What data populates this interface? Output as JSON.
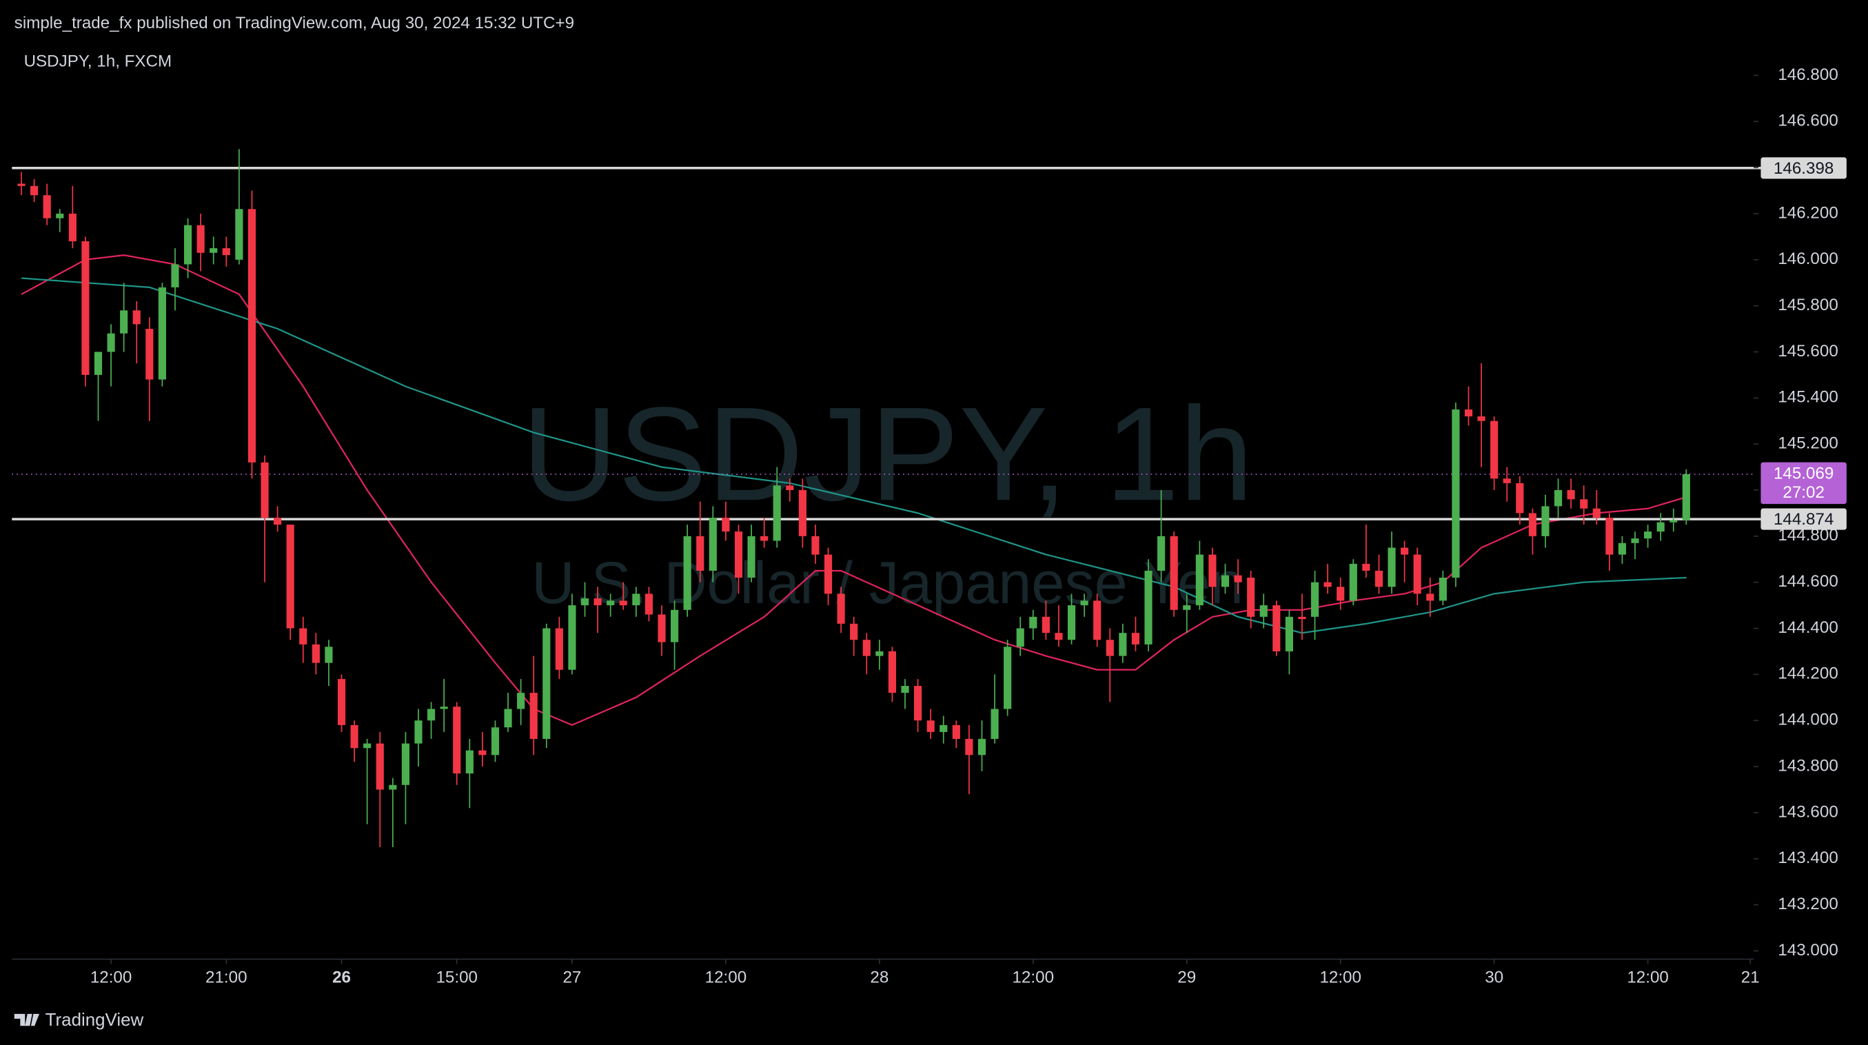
{
  "chart_data": {
    "type": "candlestick",
    "header": "simple_trade_fx published on TradingView.com, Aug 30, 2024 15:32 UTC+9",
    "title": "USDJPY, 1h, FXCM",
    "watermark": [
      "USDJPY, 1h",
      "U.S. Dollar / Japanese Yen"
    ],
    "footer": "TradingView",
    "up_color": "#4caf50",
    "down_color": "#f23645",
    "open": [
      146.33,
      146.32,
      146.28,
      146.18,
      146.2,
      146.08,
      145.5,
      145.6,
      145.68,
      145.78,
      145.7,
      145.48,
      145.88,
      145.98,
      146.15,
      146.03,
      146.05,
      146.0,
      146.22,
      145.12,
      144.88,
      144.85,
      144.4,
      144.33,
      144.25,
      144.18,
      143.98,
      143.88,
      143.9,
      143.7,
      143.72,
      143.9,
      144.0,
      144.05,
      144.06,
      143.77,
      143.87,
      143.85,
      143.97,
      144.05,
      144.12,
      143.92,
      144.4,
      144.22,
      144.5,
      144.53,
      144.5,
      144.52,
      144.5,
      144.55,
      144.46,
      144.34,
      144.48,
      144.8,
      144.65,
      144.88,
      144.82,
      144.62,
      144.8,
      144.78,
      145.02,
      145.0,
      144.8,
      144.72,
      144.55,
      144.42,
      144.35,
      144.28,
      144.3,
      144.12,
      144.15,
      144.0,
      143.95,
      143.98,
      143.92,
      143.85,
      143.92,
      144.05,
      144.32,
      144.4,
      144.45,
      144.38,
      144.35,
      144.5,
      144.52,
      144.35,
      144.28,
      144.38,
      144.33,
      144.65,
      144.8,
      144.48,
      144.5,
      144.72,
      144.58,
      144.63,
      144.62,
      144.45,
      144.5,
      144.3,
      144.45,
      144.45,
      144.6,
      144.58,
      144.52,
      144.68,
      144.65,
      144.58,
      144.75,
      144.72,
      144.55,
      144.52,
      144.62,
      145.35,
      145.32,
      145.3,
      145.05,
      145.03,
      144.9,
      144.8,
      144.93,
      145.0,
      144.96,
      144.92,
      144.88,
      144.72,
      144.77,
      144.79,
      144.82,
      144.86,
      144.87
    ],
    "high": [
      146.38,
      146.35,
      146.33,
      146.22,
      146.32,
      146.1,
      145.6,
      145.72,
      145.9,
      145.82,
      145.75,
      145.9,
      146.05,
      146.18,
      146.2,
      146.1,
      146.1,
      146.48,
      146.3,
      145.15,
      144.93,
      144.85,
      144.45,
      144.38,
      144.35,
      144.2,
      144.0,
      143.92,
      143.95,
      143.75,
      143.95,
      144.05,
      144.08,
      144.18,
      144.08,
      143.92,
      143.95,
      144.0,
      144.12,
      144.18,
      144.28,
      144.42,
      144.45,
      144.55,
      144.6,
      144.58,
      144.55,
      144.6,
      144.58,
      144.58,
      144.5,
      144.52,
      144.85,
      144.95,
      144.93,
      144.95,
      144.85,
      144.85,
      144.88,
      145.1,
      145.05,
      145.05,
      144.85,
      144.75,
      144.58,
      144.45,
      144.38,
      144.35,
      144.32,
      144.18,
      144.18,
      144.05,
      144.02,
      144.0,
      143.98,
      144.0,
      144.2,
      144.35,
      144.45,
      144.48,
      144.52,
      144.5,
      144.55,
      144.55,
      144.55,
      144.4,
      144.42,
      144.45,
      144.7,
      145.0,
      144.82,
      144.55,
      144.78,
      144.75,
      144.68,
      144.7,
      144.65,
      144.55,
      144.52,
      144.48,
      144.55,
      144.65,
      144.68,
      144.62,
      144.7,
      144.85,
      144.72,
      144.82,
      144.78,
      144.75,
      144.62,
      144.65,
      145.38,
      145.45,
      145.55,
      145.32,
      145.1,
      145.06,
      144.92,
      144.98,
      145.05,
      145.05,
      145.02,
      145.0,
      144.9,
      144.8,
      144.82,
      144.85,
      144.9,
      144.92,
      145.09
    ],
    "low": [
      146.28,
      146.25,
      146.15,
      146.12,
      146.05,
      145.45,
      145.3,
      145.45,
      145.6,
      145.55,
      145.3,
      145.45,
      145.78,
      145.92,
      145.95,
      145.98,
      145.97,
      145.98,
      145.05,
      144.6,
      144.82,
      144.35,
      144.25,
      144.2,
      144.15,
      143.95,
      143.82,
      143.55,
      143.45,
      143.45,
      143.55,
      143.8,
      143.92,
      143.95,
      143.72,
      143.62,
      143.8,
      143.82,
      143.95,
      143.98,
      143.85,
      143.88,
      144.18,
      144.2,
      144.45,
      144.38,
      144.45,
      144.48,
      144.45,
      144.43,
      144.28,
      144.22,
      144.45,
      144.6,
      144.6,
      144.78,
      144.55,
      144.6,
      144.75,
      144.75,
      144.95,
      144.75,
      144.68,
      144.5,
      144.38,
      144.28,
      144.2,
      144.22,
      144.08,
      144.05,
      143.95,
      143.92,
      143.9,
      143.88,
      143.68,
      143.78,
      143.9,
      144.02,
      144.28,
      144.35,
      144.35,
      144.32,
      144.33,
      144.45,
      144.32,
      144.08,
      144.25,
      144.3,
      144.3,
      144.6,
      144.45,
      144.38,
      144.48,
      144.5,
      144.55,
      144.55,
      144.4,
      144.4,
      144.28,
      144.2,
      144.35,
      144.35,
      144.55,
      144.48,
      144.5,
      144.62,
      144.55,
      144.55,
      144.6,
      144.5,
      144.45,
      144.5,
      144.58,
      145.28,
      145.1,
      145.0,
      144.95,
      144.85,
      144.72,
      144.75,
      144.88,
      144.92,
      144.85,
      144.85,
      144.65,
      144.68,
      144.7,
      144.75,
      144.78,
      144.82,
      144.85
    ],
    "close": [
      146.32,
      146.28,
      146.18,
      146.2,
      146.08,
      145.5,
      145.6,
      145.68,
      145.78,
      145.72,
      145.48,
      145.88,
      145.98,
      146.15,
      146.03,
      146.05,
      146.02,
      146.22,
      145.12,
      144.88,
      144.85,
      144.4,
      144.33,
      144.25,
      144.32,
      143.98,
      143.88,
      143.9,
      143.7,
      143.72,
      143.9,
      144.0,
      144.05,
      144.06,
      143.77,
      143.87,
      143.85,
      143.97,
      144.05,
      144.12,
      143.92,
      144.4,
      144.22,
      144.5,
      144.53,
      144.5,
      144.52,
      144.5,
      144.55,
      144.46,
      144.34,
      144.48,
      144.8,
      144.65,
      144.88,
      144.82,
      144.62,
      144.8,
      144.78,
      145.02,
      145.0,
      144.8,
      144.72,
      144.55,
      144.42,
      144.35,
      144.28,
      144.3,
      144.12,
      144.15,
      144.0,
      143.95,
      143.98,
      143.92,
      143.85,
      143.92,
      144.05,
      144.32,
      144.4,
      144.45,
      144.38,
      144.35,
      144.5,
      144.52,
      144.35,
      144.28,
      144.38,
      144.33,
      144.65,
      144.8,
      144.48,
      144.5,
      144.72,
      144.58,
      144.63,
      144.6,
      144.45,
      144.5,
      144.3,
      144.45,
      144.44,
      144.6,
      144.58,
      144.52,
      144.68,
      144.65,
      144.58,
      144.75,
      144.72,
      144.55,
      144.52,
      144.62,
      145.35,
      145.32,
      145.3,
      145.05,
      145.03,
      144.9,
      144.8,
      144.93,
      145.0,
      144.96,
      144.92,
      144.88,
      144.72,
      144.77,
      144.79,
      144.82,
      144.86,
      144.87,
      145.069
    ],
    "lines": [
      {
        "color": "#e0245e",
        "x": [
          0,
          5,
          8,
          12,
          17,
          22,
          27,
          32,
          37,
          40,
          43,
          48,
          53,
          58,
          62,
          64,
          68,
          72,
          76,
          80,
          84,
          87,
          90,
          93,
          96,
          100,
          104,
          108,
          111,
          114,
          118,
          123,
          127,
          130
        ],
        "values": [
          145.85,
          146.0,
          146.02,
          145.98,
          145.85,
          145.45,
          145.0,
          144.6,
          144.25,
          144.05,
          143.98,
          144.1,
          144.28,
          144.45,
          144.65,
          144.65,
          144.55,
          144.45,
          144.35,
          144.28,
          144.22,
          144.22,
          144.35,
          144.45,
          144.48,
          144.48,
          144.52,
          144.55,
          144.6,
          144.75,
          144.85,
          144.9,
          144.92,
          144.97
        ]
      },
      {
        "color": "#1f9488",
        "x": [
          0,
          10,
          20,
          30,
          40,
          50,
          60,
          70,
          80,
          90,
          95,
          100,
          105,
          110,
          115,
          122,
          130
        ],
        "values": [
          145.92,
          145.88,
          145.7,
          145.45,
          145.25,
          145.1,
          145.03,
          144.9,
          144.72,
          144.58,
          144.45,
          144.38,
          144.42,
          144.47,
          144.55,
          144.6,
          144.62
        ]
      }
    ],
    "hlines": [
      {
        "value": 146.398,
        "label": "146.398"
      },
      {
        "value": 144.874,
        "label": "144.874"
      }
    ],
    "last_price": {
      "value": 145.069,
      "label": "145.069",
      "countdown": "27:02",
      "color": "#b462d6"
    },
    "xlim": [
      -0.74,
      135.26
    ],
    "xticks": [
      {
        "value": 7,
        "label": "12:00"
      },
      {
        "value": 16,
        "label": "21:00"
      },
      {
        "value": 25,
        "label": "26"
      },
      {
        "value": 34,
        "label": "15:00"
      },
      {
        "value": 43,
        "label": "27"
      },
      {
        "value": 55,
        "label": "12:00"
      },
      {
        "value": 67,
        "label": "28"
      },
      {
        "value": 79,
        "label": "12:00"
      },
      {
        "value": 91,
        "label": "29"
      },
      {
        "value": 103,
        "label": "12:00"
      },
      {
        "value": 115,
        "label": "30"
      },
      {
        "value": 127,
        "label": "12:00"
      },
      {
        "value": 135,
        "label": "21"
      }
    ],
    "ylim": [
      142.964,
      146.946
    ],
    "yticks": [
      {
        "value": 143.0,
        "label": "143.000"
      },
      {
        "value": 143.2,
        "label": "143.200"
      },
      {
        "value": 143.4,
        "label": "143.400"
      },
      {
        "value": 143.6,
        "label": "143.600"
      },
      {
        "value": 143.8,
        "label": "143.800"
      },
      {
        "value": 144.0,
        "label": "144.000"
      },
      {
        "value": 144.2,
        "label": "144.200"
      },
      {
        "value": 144.4,
        "label": "144.400"
      },
      {
        "value": 144.6,
        "label": "144.600"
      },
      {
        "value": 144.8,
        "label": "144.800"
      },
      {
        "value": 145.0,
        "label": "145.000"
      },
      {
        "value": 145.2,
        "label": "145.200"
      },
      {
        "value": 145.4,
        "label": "145.400"
      },
      {
        "value": 145.6,
        "label": "145.600"
      },
      {
        "value": 145.8,
        "label": "145.800"
      },
      {
        "value": 146.0,
        "label": "146.000"
      },
      {
        "value": 146.2,
        "label": "146.200"
      },
      {
        "value": 146.4,
        "label": "146.400"
      },
      {
        "value": 146.6,
        "label": "146.600"
      },
      {
        "value": 146.8,
        "label": "146.800"
      }
    ]
  }
}
